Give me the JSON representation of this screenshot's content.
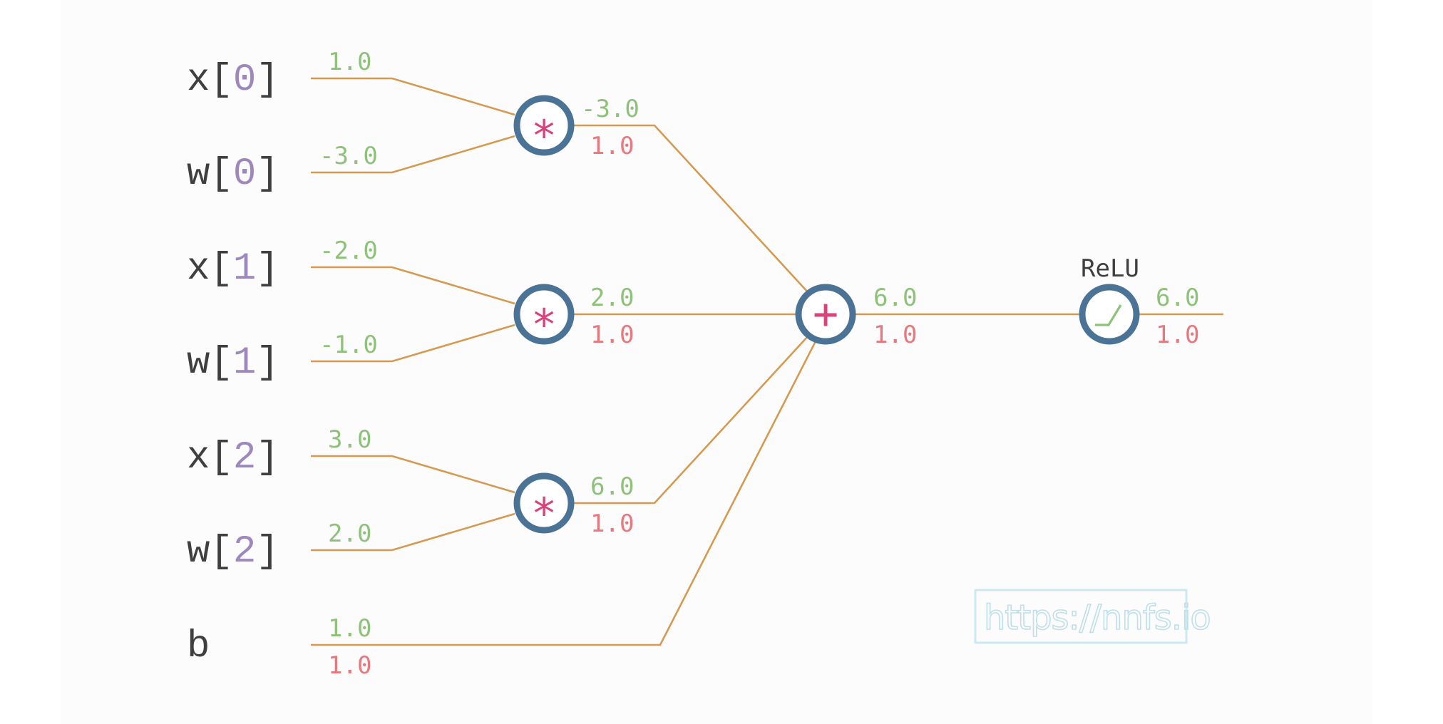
{
  "inputs": [
    {
      "name": "x",
      "lb": "[",
      "index": "0",
      "rb": "]",
      "value": "1.0"
    },
    {
      "name": "w",
      "lb": "[",
      "index": "0",
      "rb": "]",
      "value": "-3.0"
    },
    {
      "name": "x",
      "lb": "[",
      "index": "1",
      "rb": "]",
      "value": "-2.0"
    },
    {
      "name": "w",
      "lb": "[",
      "index": "1",
      "rb": "]",
      "value": "-1.0"
    },
    {
      "name": "x",
      "lb": "[",
      "index": "2",
      "rb": "]",
      "value": "3.0"
    },
    {
      "name": "w",
      "lb": "[",
      "index": "2",
      "rb": "]",
      "value": "2.0"
    }
  ],
  "bias": {
    "name": "b",
    "value": "1.0",
    "grad": "1.0"
  },
  "mul_nodes": [
    {
      "symbol": "*",
      "value": "-3.0",
      "grad": "1.0"
    },
    {
      "symbol": "*",
      "value": "2.0",
      "grad": "1.0"
    },
    {
      "symbol": "*",
      "value": "6.0",
      "grad": "1.0"
    }
  ],
  "sum_node": {
    "symbol": "+",
    "value": "6.0",
    "grad": "1.0"
  },
  "relu_node": {
    "label": "ReLU",
    "value": "6.0",
    "grad": "1.0"
  },
  "watermark": "https://nnfs.io",
  "colors": {
    "wire": "#d59a52",
    "node_ring": "#4b7396",
    "forward_value": "#8ec27a",
    "gradient_value": "#e8787e",
    "operator": "#d9437d",
    "index": "#9c88bd"
  }
}
